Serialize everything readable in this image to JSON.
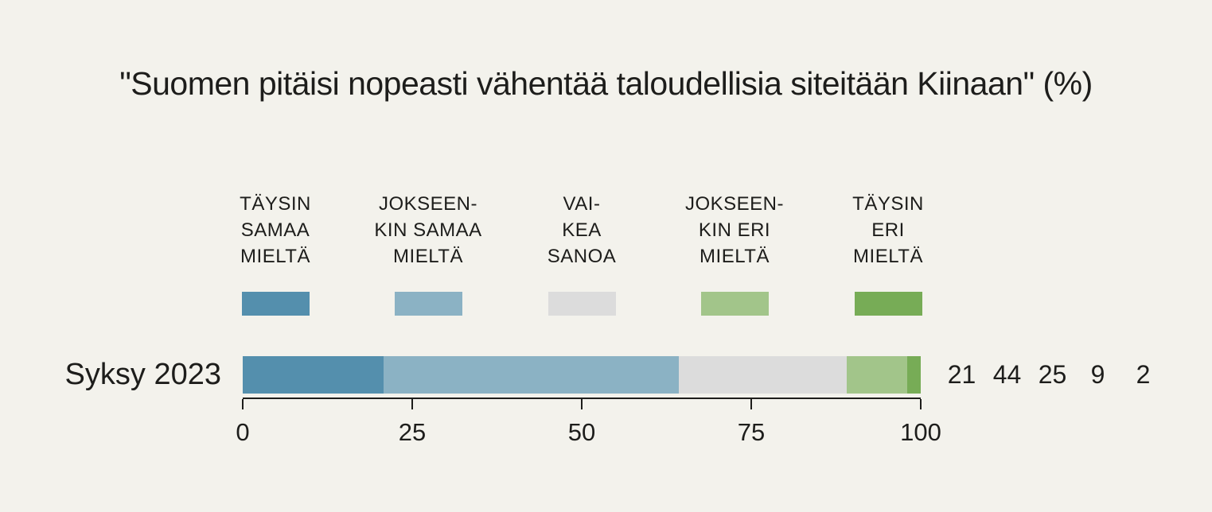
{
  "title": "\"Suomen pitäisi nopeasti vähentää taloudellisia siteitään Kiinaan\" (%)",
  "colors": {
    "background": "#f3f2ec",
    "text": "#1d1d1b",
    "axis": "#1d1d1b"
  },
  "legend": {
    "items": [
      {
        "label": "TÄYSIN\nSAMAA\nMIELTÄ",
        "color": "#548fad"
      },
      {
        "label": "JOKSEEN-\nKIN SAMAA\nMIELTÄ",
        "color": "#8bb2c4"
      },
      {
        "label": "VAI-\nKEA\nSANOA",
        "color": "#dcdcdc"
      },
      {
        "label": "JOKSEEN-\nKIN ERI\nMIELTÄ",
        "color": "#a2c58a"
      },
      {
        "label": "TÄYSIN\nERI\nMIELTÄ",
        "color": "#77ac56"
      }
    ]
  },
  "row": {
    "label": "Syksy 2023"
  },
  "axis": {
    "ticks": [
      "0",
      "25",
      "50",
      "75",
      "100"
    ]
  },
  "value_labels": [
    "21",
    "44",
    "25",
    "9",
    "2"
  ],
  "chart_data": {
    "type": "bar",
    "stacked": true,
    "orientation": "horizontal",
    "title": "\"Suomen pitäisi nopeasti vähentää taloudellisia siteitään Kiinaan\" (%)",
    "categories": [
      "TÄYSIN SAMAA MIELTÄ",
      "JOKSEENKIN SAMAA MIELTÄ",
      "VAIKEA SANOA",
      "JOKSEENKIN ERI MIELTÄ",
      "TÄYSIN ERI MIELTÄ"
    ],
    "series": [
      {
        "name": "Syksy 2023",
        "values": [
          21,
          44,
          25,
          9,
          2
        ]
      }
    ],
    "xlabel": "",
    "ylabel": "",
    "xlim": [
      0,
      100
    ],
    "x_ticks": [
      0,
      25,
      50,
      75,
      100
    ],
    "grid": false,
    "legend_position": "top",
    "colors": [
      "#548fad",
      "#8bb2c4",
      "#dcdcdc",
      "#a2c58a",
      "#77ac56"
    ]
  }
}
